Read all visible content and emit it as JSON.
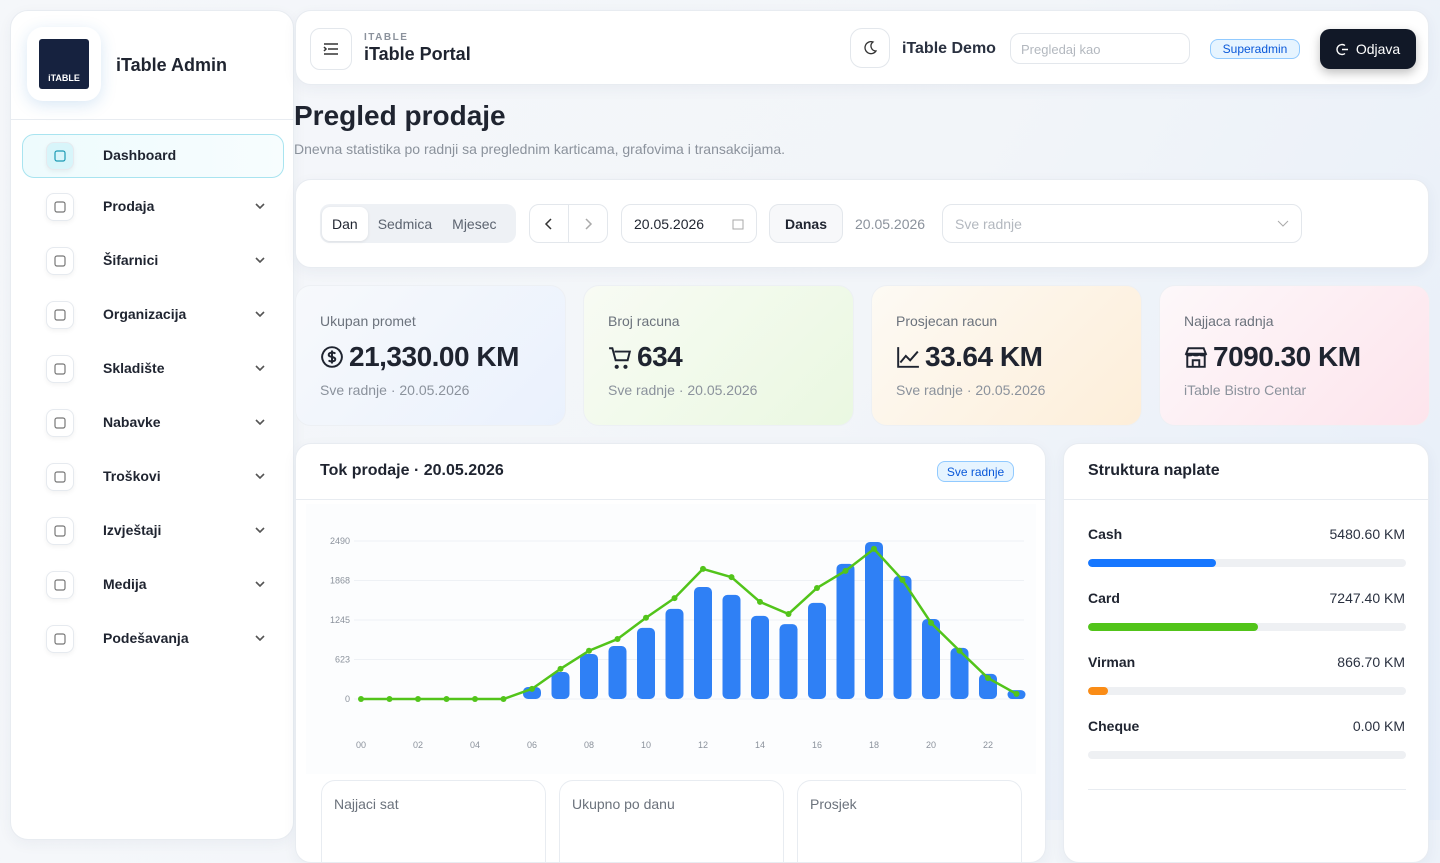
{
  "sidebar": {
    "title": "iTable Admin",
    "logo_text": "iTABLE",
    "menu": [
      "Dashboard",
      "Prodaja",
      "Šifarnici",
      "Organizacija",
      "Skladište",
      "Nabavke",
      "Troškovi",
      "Izvještaji",
      "Medija",
      "Podešavanja"
    ]
  },
  "header": {
    "brand_small": "ITABLE",
    "brand": "iTable Portal",
    "demo": "iTable Demo",
    "search_placeholder": "Pregledaj kao",
    "role": "Superadmin",
    "logout": "Odjava"
  },
  "page": {
    "title": "Pregled prodaje",
    "subtitle": "Dnevna statistika po radnji sa preglednim karticama, grafovima i transakcijama."
  },
  "filters": {
    "periods": [
      "Dan",
      "Sedmica",
      "Mjesec"
    ],
    "date": "20.05.2026",
    "today": "Danas",
    "today_date": "20.05.2026",
    "store_placeholder": "Sve radnje"
  },
  "stats": [
    {
      "label": "Ukupan promet",
      "value": "21,330.00 KM",
      "note": "Sve radnje · 20.05.2026"
    },
    {
      "label": "Broj racuna",
      "value": "634",
      "note": "Sve radnje · 20.05.2026"
    },
    {
      "label": "Prosjecan racun",
      "value": "33.64 KM",
      "note": "Sve radnje · 20.05.2026"
    },
    {
      "label": "Najjaca radnja",
      "value": "7090.30 KM",
      "note": "iTable Bistro Centar"
    }
  ],
  "sales_chart": {
    "type": "bar",
    "title": "Tok prodaje · 20.05.2026",
    "badge": "Sve radnje",
    "categories": [
      "00",
      null,
      "02",
      null,
      "04",
      null,
      "06",
      null,
      "08",
      null,
      "10",
      null,
      "12",
      null,
      "14",
      null,
      "16",
      null,
      "18",
      null,
      "20",
      null,
      "22",
      null
    ],
    "series": [
      {
        "type": "bar",
        "color": "#2f80f5",
        "values": [
          0,
          0,
          0,
          0,
          0,
          0,
          190,
          425,
          710,
          835,
          1120,
          1420,
          1765,
          1640,
          1310,
          1180,
          1515,
          2130,
          2475,
          1940,
          1260,
          805,
          395,
          140
        ]
      },
      {
        "type": "line",
        "color": "#52c41a",
        "values": [
          0,
          0,
          0,
          0,
          0,
          0,
          160,
          475,
          760,
          945,
          1280,
          1590,
          2050,
          1920,
          1530,
          1340,
          1750,
          2020,
          2365,
          1875,
          1200,
          760,
          330,
          80
        ]
      }
    ],
    "ylim": [
      0,
      2490
    ],
    "yticks": [
      0,
      623,
      1245,
      1868,
      2490
    ],
    "grid": true
  },
  "payments": {
    "title": "Struktura naplate",
    "categories": [
      "Cash",
      "Card",
      "Virman",
      "Cheque"
    ],
    "values": [
      5480.6,
      7247.4,
      866.7,
      0
    ],
    "value_labels": [
      "5480.60 KM",
      "7247.40 KM",
      "866.70 KM",
      "0.00 KM"
    ],
    "colors": [
      "#1677ff",
      "#52c41a",
      "#fa8c16"
    ]
  },
  "bottom_cards": [
    "Najjaci sat",
    "Ukupno po danu",
    "Prosjek"
  ]
}
